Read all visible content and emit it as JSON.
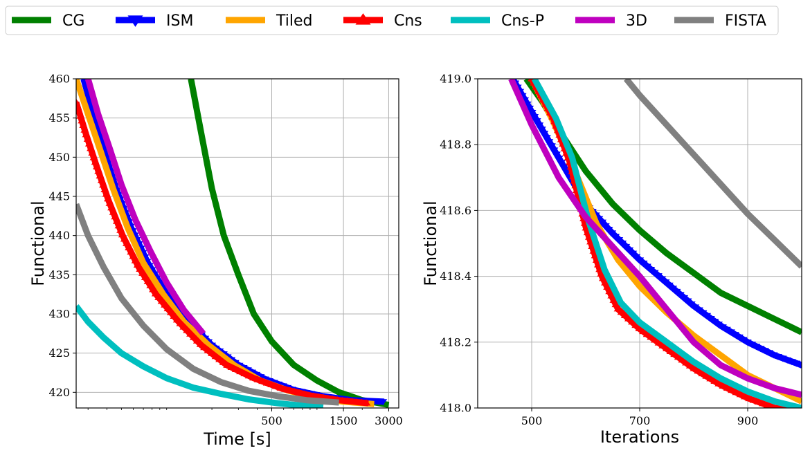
{
  "chart_data": [
    {
      "type": "line",
      "xlabel": "Time [s]",
      "ylabel": "Functional",
      "xscale": "log",
      "xlim": [
        25,
        3500
      ],
      "ylim": [
        418,
        460
      ],
      "xticks": [
        500,
        1500,
        3000
      ],
      "xtick_labels": [
        "500",
        "1500",
        "3000"
      ],
      "yticks": [
        420,
        425,
        430,
        435,
        440,
        445,
        450,
        455,
        460
      ],
      "ytick_labels": [
        "420",
        "425",
        "430",
        "435",
        "440",
        "445",
        "450",
        "455",
        "460"
      ],
      "grid": true,
      "series": [
        {
          "name": "CG",
          "color": "#008000",
          "marker": "none",
          "x": [
            145,
            170,
            200,
            240,
            300,
            380,
            500,
            700,
            1000,
            1400,
            2000,
            3000
          ],
          "y": [
            460,
            453,
            446,
            440,
            435,
            430,
            426.5,
            423.5,
            421.5,
            420,
            419,
            418.4
          ]
        },
        {
          "name": "ISM",
          "color": "#0000ff",
          "marker": "triangle-down",
          "x": [
            28,
            32,
            38,
            46,
            58,
            75,
            100,
            140,
            200,
            300,
            450,
            700,
            1100,
            1700,
            2800
          ],
          "y": [
            460,
            456,
            451,
            446,
            441,
            436.5,
            432.5,
            429,
            426,
            423.5,
            421.7,
            420.3,
            419.5,
            419,
            418.8
          ]
        },
        {
          "name": "Tiled",
          "color": "#ffa500",
          "marker": "none",
          "x": [
            25,
            30,
            36,
            44,
            55,
            70,
            95,
            130,
            190,
            280,
            420,
            650,
            1000,
            1500,
            2400
          ],
          "y": [
            460,
            455.5,
            451,
            446,
            441,
            436.5,
            432.5,
            429,
            426,
            423.5,
            421.5,
            420.2,
            419.3,
            418.8,
            418.5
          ]
        },
        {
          "name": "Cns",
          "color": "#ff0000",
          "marker": "triangle-up",
          "x": [
            25,
            29,
            34,
            41,
            51,
            65,
            85,
            120,
            170,
            250,
            380,
            580,
            900,
            1400,
            2200
          ],
          "y": [
            457,
            453,
            449,
            444.5,
            440,
            436,
            432.5,
            429,
            426,
            423.5,
            421.8,
            420.5,
            419.6,
            419,
            418.6
          ]
        },
        {
          "name": "Cns-P",
          "color": "#00bfbf",
          "marker": "none",
          "x": [
            25,
            30,
            38,
            50,
            70,
            100,
            150,
            230,
            350,
            550,
            800,
            1100
          ],
          "y": [
            431,
            429,
            427,
            425,
            423.3,
            421.8,
            420.6,
            419.8,
            419.1,
            418.6,
            418.3,
            418.1
          ]
        },
        {
          "name": "3D",
          "color": "#bf00bf",
          "marker": "none",
          "x": [
            30,
            35,
            42,
            50,
            62,
            78,
            100,
            130,
            175
          ],
          "y": [
            460,
            455.5,
            451,
            446.5,
            442,
            438,
            434,
            430.5,
            427.5
          ]
        },
        {
          "name": "FISTA",
          "color": "#808080",
          "marker": "none",
          "x": [
            25,
            30,
            38,
            50,
            70,
            100,
            150,
            230,
            350,
            550,
            850,
            1400
          ],
          "y": [
            444,
            440,
            436,
            432,
            428.5,
            425.5,
            423,
            421.3,
            420.2,
            419.5,
            419,
            418.7
          ]
        }
      ]
    },
    {
      "type": "line",
      "xlabel": "Iterations",
      "ylabel": "Functional",
      "xlim": [
        400,
        1000
      ],
      "ylim": [
        418.0,
        419.0
      ],
      "xticks": [
        500,
        700,
        900
      ],
      "xtick_labels": [
        "500",
        "700",
        "900"
      ],
      "yticks": [
        418.0,
        418.2,
        418.4,
        418.6,
        418.8,
        419.0
      ],
      "ytick_labels": [
        "418.0",
        "418.2",
        "418.4",
        "418.6",
        "418.8",
        "419.0"
      ],
      "grid": true,
      "series": [
        {
          "name": "CG",
          "color": "#008000",
          "marker": "none",
          "x": [
            490,
            520,
            560,
            600,
            650,
            700,
            750,
            800,
            850,
            900,
            950,
            1000
          ],
          "y": [
            419.0,
            418.93,
            418.82,
            418.72,
            418.62,
            418.54,
            418.47,
            418.41,
            418.35,
            418.31,
            418.27,
            418.23
          ]
        },
        {
          "name": "ISM",
          "color": "#0000ff",
          "marker": "triangle-down",
          "x": [
            465,
            500,
            550,
            600,
            650,
            700,
            750,
            800,
            850,
            900,
            950,
            1000
          ],
          "y": [
            419.0,
            418.9,
            418.76,
            418.62,
            418.53,
            418.45,
            418.38,
            418.31,
            418.25,
            418.2,
            418.16,
            418.13
          ]
        },
        {
          "name": "Tiled",
          "color": "#ffa500",
          "marker": "none",
          "x": [
            500,
            540,
            580,
            620,
            660,
            700,
            750,
            800,
            850,
            900,
            950,
            1000
          ],
          "y": [
            419.0,
            418.87,
            418.72,
            418.56,
            418.45,
            418.37,
            418.29,
            418.22,
            418.16,
            418.1,
            418.06,
            418.02
          ]
        },
        {
          "name": "Cns",
          "color": "#ff0000",
          "marker": "triangle-up",
          "x": [
            500,
            540,
            570,
            600,
            630,
            660,
            700,
            750,
            800,
            850,
            900,
            950,
            1000
          ],
          "y": [
            419.0,
            418.88,
            418.75,
            418.55,
            418.4,
            418.3,
            418.24,
            418.18,
            418.12,
            418.07,
            418.03,
            418.0,
            417.99
          ]
        },
        {
          "name": "Cns-P",
          "color": "#00bfbf",
          "marker": "none",
          "x": [
            505,
            545,
            575,
            605,
            635,
            665,
            700,
            750,
            800,
            850,
            900,
            950,
            1000
          ],
          "y": [
            419.0,
            418.88,
            418.76,
            418.57,
            418.42,
            418.32,
            418.26,
            418.2,
            418.14,
            418.09,
            418.05,
            418.02,
            418.0
          ]
        },
        {
          "name": "3D",
          "color": "#bf00bf",
          "marker": "none",
          "x": [
            462,
            500,
            550,
            600,
            650,
            700,
            750,
            800,
            850,
            900,
            950,
            1000
          ],
          "y": [
            419.0,
            418.86,
            418.7,
            418.58,
            418.49,
            418.4,
            418.3,
            418.2,
            418.13,
            418.09,
            418.06,
            418.04
          ]
        },
        {
          "name": "FISTA",
          "color": "#808080",
          "marker": "none",
          "x": [
            675,
            700,
            750,
            800,
            850,
            900,
            950,
            1000
          ],
          "y": [
            419.0,
            418.95,
            418.86,
            418.77,
            418.68,
            418.59,
            418.51,
            418.43
          ]
        }
      ]
    }
  ],
  "legend": {
    "placement": "top",
    "entries": [
      {
        "label": "CG",
        "color": "#008000",
        "marker": "none"
      },
      {
        "label": "ISM",
        "color": "#0000ff",
        "marker": "triangle-down"
      },
      {
        "label": "Tiled",
        "color": "#ffa500",
        "marker": "none"
      },
      {
        "label": "Cns",
        "color": "#ff0000",
        "marker": "triangle-up"
      },
      {
        "label": "Cns-P",
        "color": "#00bfbf",
        "marker": "none"
      },
      {
        "label": "3D",
        "color": "#bf00bf",
        "marker": "none"
      },
      {
        "label": "FISTA",
        "color": "#808080",
        "marker": "none"
      }
    ]
  }
}
